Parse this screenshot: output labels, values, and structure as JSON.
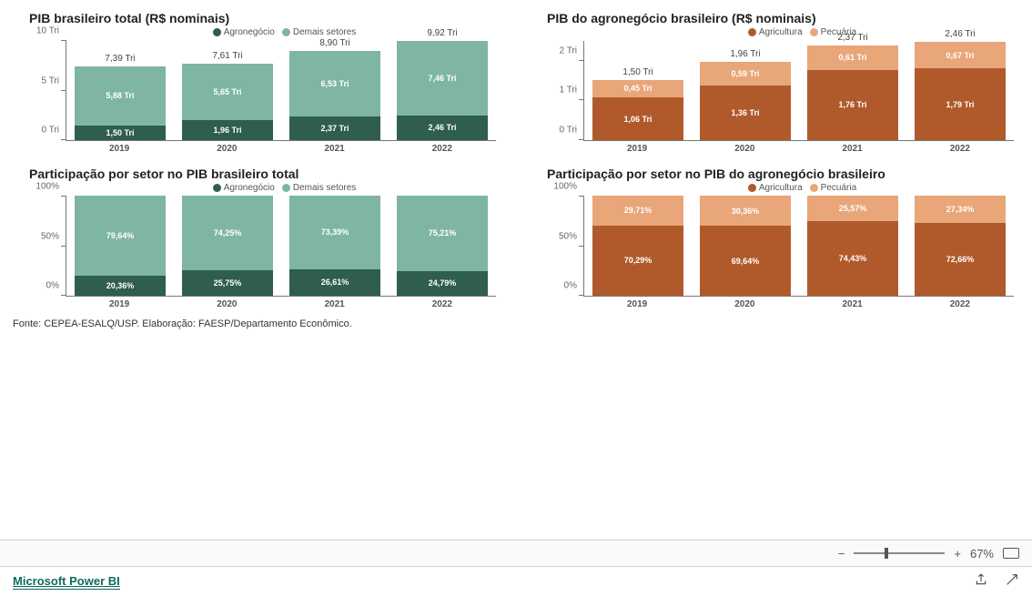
{
  "colors": {
    "green_dark": "#2f5d50",
    "green_light": "#7fb6a3",
    "brown_dark": "#b05a2c",
    "brown_light": "#e8a679",
    "axis": "#777777",
    "title": "#222222",
    "label_white": "#ffffff",
    "background": "#ffffff"
  },
  "charts": {
    "c1": {
      "type": "stacked-bar",
      "title": "PIB brasileiro total (R$ nominais)",
      "legend": [
        {
          "label": "Agronegócio",
          "color": "#2f5d50"
        },
        {
          "label": "Demais setores",
          "color": "#7fb6a3"
        }
      ],
      "categories": [
        "2019",
        "2020",
        "2021",
        "2022"
      ],
      "y": {
        "min": 0,
        "max": 10,
        "step": 5,
        "suffix": " Tri",
        "label0": "0 Tri",
        "label1": "5 Tri",
        "label2": "10 Tri"
      },
      "bars": [
        {
          "total_label": "7,39 Tri",
          "segs": [
            {
              "v": 1.5,
              "label": "1,50 Tri",
              "color": "#2f5d50"
            },
            {
              "v": 5.88,
              "label": "5,88 Tri",
              "color": "#7fb6a3"
            }
          ]
        },
        {
          "total_label": "7,61 Tri",
          "segs": [
            {
              "v": 1.96,
              "label": "1,96 Tri",
              "color": "#2f5d50"
            },
            {
              "v": 5.65,
              "label": "5,65 Tri",
              "color": "#7fb6a3"
            }
          ]
        },
        {
          "total_label": "8,90 Tri",
          "segs": [
            {
              "v": 2.37,
              "label": "2,37 Tri",
              "color": "#2f5d50"
            },
            {
              "v": 6.53,
              "label": "6,53 Tri",
              "color": "#7fb6a3"
            }
          ]
        },
        {
          "total_label": "9,92 Tri",
          "segs": [
            {
              "v": 2.46,
              "label": "2,46 Tri",
              "color": "#2f5d50"
            },
            {
              "v": 7.46,
              "label": "7,46 Tri",
              "color": "#7fb6a3"
            }
          ]
        }
      ]
    },
    "c2": {
      "type": "stacked-bar",
      "title": "PIB do agronegócio brasileiro (R$ nominais)",
      "legend": [
        {
          "label": "Agricultura",
          "color": "#b05a2c"
        },
        {
          "label": "Pecuária",
          "color": "#e8a679"
        }
      ],
      "categories": [
        "2019",
        "2020",
        "2021",
        "2022"
      ],
      "y": {
        "min": 0,
        "max": 2.5,
        "step": 1,
        "suffix": " Tri",
        "label0": "0 Tri",
        "label1": "1 Tri",
        "label2": "2 Tri"
      },
      "bars": [
        {
          "total_label": "1,50 Tri",
          "segs": [
            {
              "v": 1.06,
              "label": "1,06 Tri",
              "color": "#b05a2c"
            },
            {
              "v": 0.45,
              "label": "0,45 Tri",
              "color": "#e8a679"
            }
          ]
        },
        {
          "total_label": "1,96 Tri",
          "segs": [
            {
              "v": 1.36,
              "label": "1,36 Tri",
              "color": "#b05a2c"
            },
            {
              "v": 0.59,
              "label": "0,59 Tri",
              "color": "#e8a679"
            }
          ]
        },
        {
          "total_label": "2,37 Tri",
          "segs": [
            {
              "v": 1.76,
              "label": "1,76 Tri",
              "color": "#b05a2c"
            },
            {
              "v": 0.61,
              "label": "0,61 Tri",
              "color": "#e8a679"
            }
          ]
        },
        {
          "total_label": "2,46 Tri",
          "segs": [
            {
              "v": 1.79,
              "label": "1,79 Tri",
              "color": "#b05a2c"
            },
            {
              "v": 0.67,
              "label": "0,67 Tri",
              "color": "#e8a679"
            }
          ]
        }
      ]
    },
    "c3": {
      "type": "stacked-bar-100",
      "title": "Participação por setor no PIB brasileiro total",
      "legend": [
        {
          "label": "Agronegócio",
          "color": "#2f5d50"
        },
        {
          "label": "Demais setores",
          "color": "#7fb6a3"
        }
      ],
      "categories": [
        "2019",
        "2020",
        "2021",
        "2022"
      ],
      "y": {
        "min": 0,
        "max": 100,
        "step": 50,
        "suffix": "%",
        "label0": "0%",
        "label1": "50%",
        "label2": "100%"
      },
      "bars": [
        {
          "segs": [
            {
              "v": 20.36,
              "label": "20,36%",
              "color": "#2f5d50"
            },
            {
              "v": 79.64,
              "label": "79,64%",
              "color": "#7fb6a3"
            }
          ]
        },
        {
          "segs": [
            {
              "v": 25.75,
              "label": "25,75%",
              "color": "#2f5d50"
            },
            {
              "v": 74.25,
              "label": "74,25%",
              "color": "#7fb6a3"
            }
          ]
        },
        {
          "segs": [
            {
              "v": 26.61,
              "label": "26,61%",
              "color": "#2f5d50"
            },
            {
              "v": 73.39,
              "label": "73,39%",
              "color": "#7fb6a3"
            }
          ]
        },
        {
          "segs": [
            {
              "v": 24.79,
              "label": "24,79%",
              "color": "#2f5d50"
            },
            {
              "v": 75.21,
              "label": "75,21%",
              "color": "#7fb6a3"
            }
          ]
        }
      ]
    },
    "c4": {
      "type": "stacked-bar-100",
      "title": "Participação por setor no PIB do agronegócio brasileiro",
      "legend": [
        {
          "label": "Agricultura",
          "color": "#b05a2c"
        },
        {
          "label": "Pecuária",
          "color": "#e8a679"
        }
      ],
      "categories": [
        "2019",
        "2020",
        "2021",
        "2022"
      ],
      "y": {
        "min": 0,
        "max": 100,
        "step": 50,
        "suffix": "%",
        "label0": "0%",
        "label1": "50%",
        "label2": "100%"
      },
      "bars": [
        {
          "segs": [
            {
              "v": 70.29,
              "label": "70,29%",
              "color": "#b05a2c"
            },
            {
              "v": 29.71,
              "label": "29,71%",
              "color": "#e8a679"
            }
          ]
        },
        {
          "segs": [
            {
              "v": 69.64,
              "label": "69,64%",
              "color": "#b05a2c"
            },
            {
              "v": 30.36,
              "label": "30,36%",
              "color": "#e8a679"
            }
          ]
        },
        {
          "segs": [
            {
              "v": 74.43,
              "label": "74,43%",
              "color": "#b05a2c"
            },
            {
              "v": 25.57,
              "label": "25,57%",
              "color": "#e8a679"
            }
          ]
        },
        {
          "segs": [
            {
              "v": 72.66,
              "label": "72,66%",
              "color": "#b05a2c"
            },
            {
              "v": 27.34,
              "label": "27,34%",
              "color": "#e8a679"
            }
          ]
        }
      ]
    }
  },
  "source_text": "Fonte: CEPEA-ESALQ/USP. Elaboração: FAESP/Departamento Econômico.",
  "footer": {
    "zoom_minus": "−",
    "zoom_plus": "+",
    "zoom_value": "67%",
    "slider_pos_pct": 34,
    "brand": "Microsoft Power BI"
  }
}
